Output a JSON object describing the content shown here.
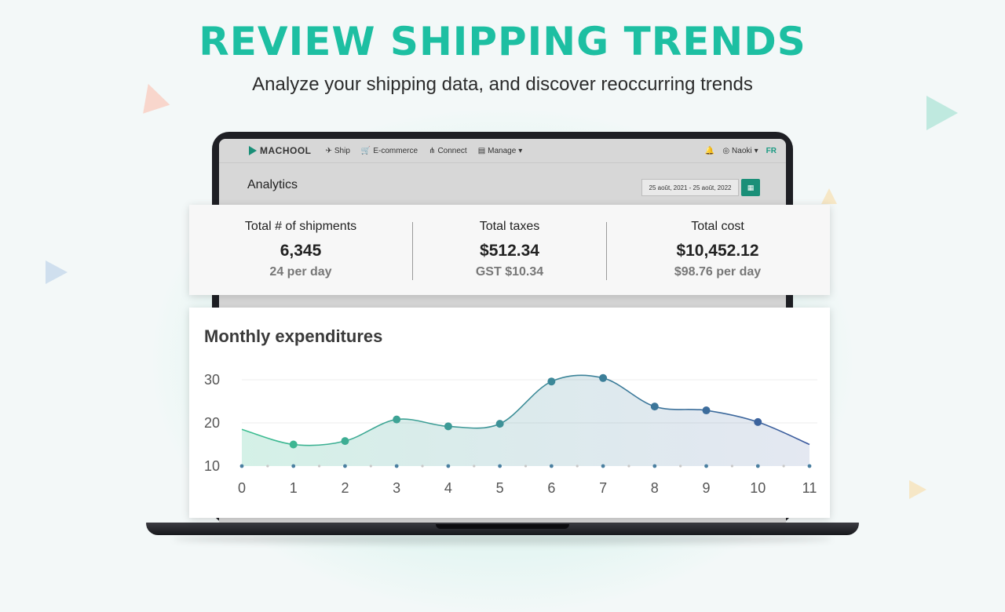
{
  "hero": {
    "title": "REVIEW SHIPPING TRENDS",
    "subtitle": "Analyze your shipping data, and discover reoccurring trends"
  },
  "app": {
    "brand": "MACHOOL",
    "nav": [
      {
        "label": "Ship",
        "icon": "paper-plane-icon"
      },
      {
        "label": "E-commerce",
        "icon": "cart-icon"
      },
      {
        "label": "Connect",
        "icon": "connect-icon"
      },
      {
        "label": "Manage",
        "icon": "list-icon"
      }
    ],
    "user": "Naoki",
    "lang": "FR",
    "page_title": "Analytics",
    "date_range": "25 août, 2021 - 25 août, 2022"
  },
  "stats": [
    {
      "label": "Total # of shipments",
      "value": "6,345",
      "sub": "24 per day"
    },
    {
      "label": "Total taxes",
      "value": "$512.34",
      "sub": "GST $10.34"
    },
    {
      "label": "Total cost",
      "value": "$10,452.12",
      "sub": "$98.76 per day"
    }
  ],
  "colors": {
    "accent": "#1dbfa2",
    "series_start": "#3dbf91",
    "series_end": "#3c5a9e"
  },
  "chart_data": {
    "type": "area",
    "title": "Monthly expenditures",
    "x": [
      0,
      1,
      2,
      3,
      4,
      5,
      6,
      7,
      8,
      9,
      10,
      11
    ],
    "x_ticks": [
      "0",
      "1",
      "2",
      "3",
      "4",
      "5",
      "6",
      "7",
      "8",
      "9",
      "10",
      "11"
    ],
    "y_ticks": [
      "10",
      "20",
      "30"
    ],
    "ylim": [
      10,
      30
    ],
    "series": [
      {
        "values": [
          18.5,
          15,
          15.8,
          20.8,
          19.2,
          19.8,
          29.6,
          30.4,
          23.8,
          22.9,
          20.2,
          15
        ]
      }
    ],
    "grid": true,
    "legend": "none"
  }
}
